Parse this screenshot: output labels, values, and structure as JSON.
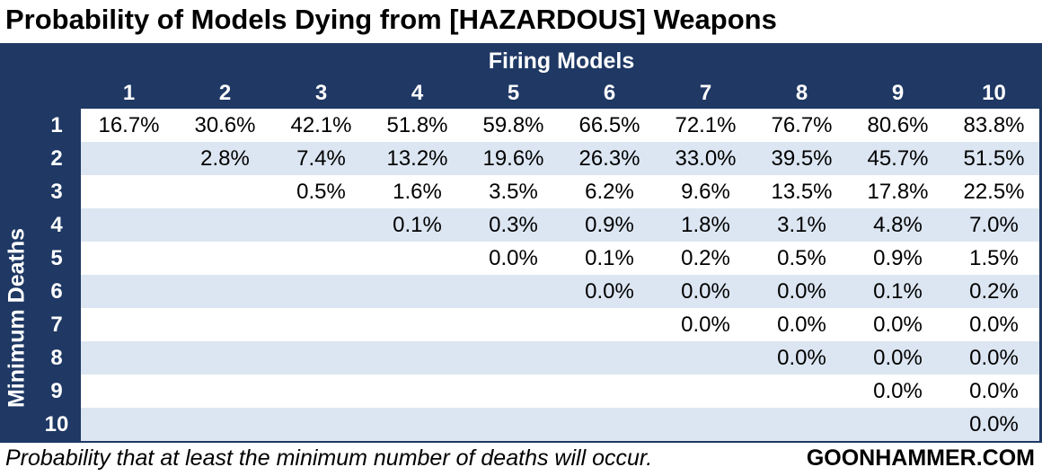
{
  "title": "Probability of Models Dying from [HAZARDOUS] Weapons",
  "footnote": "Probability that at least the minimum number of deaths will occur.",
  "brand": "GOONHAMMER.COM",
  "colors": {
    "header_bg": "#1f3864",
    "band": "#dce6f2",
    "header_text": "#ffffff"
  },
  "chart_data": {
    "type": "table",
    "title": "Probability of Models Dying from [HAZARDOUS] Weapons",
    "column_header": "Firing Models",
    "row_header": "Minimum Deaths",
    "columns": [
      "1",
      "2",
      "3",
      "4",
      "5",
      "6",
      "7",
      "8",
      "9",
      "10"
    ],
    "rows": [
      "1",
      "2",
      "3",
      "4",
      "5",
      "6",
      "7",
      "8",
      "9",
      "10"
    ],
    "cells": [
      [
        "16.7%",
        "30.6%",
        "42.1%",
        "51.8%",
        "59.8%",
        "66.5%",
        "72.1%",
        "76.7%",
        "80.6%",
        "83.8%"
      ],
      [
        "",
        "2.8%",
        "7.4%",
        "13.2%",
        "19.6%",
        "26.3%",
        "33.0%",
        "39.5%",
        "45.7%",
        "51.5%"
      ],
      [
        "",
        "",
        "0.5%",
        "1.6%",
        "3.5%",
        "6.2%",
        "9.6%",
        "13.5%",
        "17.8%",
        "22.5%"
      ],
      [
        "",
        "",
        "",
        "0.1%",
        "0.3%",
        "0.9%",
        "1.8%",
        "3.1%",
        "4.8%",
        "7.0%"
      ],
      [
        "",
        "",
        "",
        "",
        "0.0%",
        "0.1%",
        "0.2%",
        "0.5%",
        "0.9%",
        "1.5%"
      ],
      [
        "",
        "",
        "",
        "",
        "",
        "0.0%",
        "0.0%",
        "0.0%",
        "0.1%",
        "0.2%"
      ],
      [
        "",
        "",
        "",
        "",
        "",
        "",
        "0.0%",
        "0.0%",
        "0.0%",
        "0.0%"
      ],
      [
        "",
        "",
        "",
        "",
        "",
        "",
        "",
        "0.0%",
        "0.0%",
        "0.0%"
      ],
      [
        "",
        "",
        "",
        "",
        "",
        "",
        "",
        "",
        "0.0%",
        "0.0%"
      ],
      [
        "",
        "",
        "",
        "",
        "",
        "",
        "",
        "",
        "",
        "0.0%"
      ]
    ]
  }
}
